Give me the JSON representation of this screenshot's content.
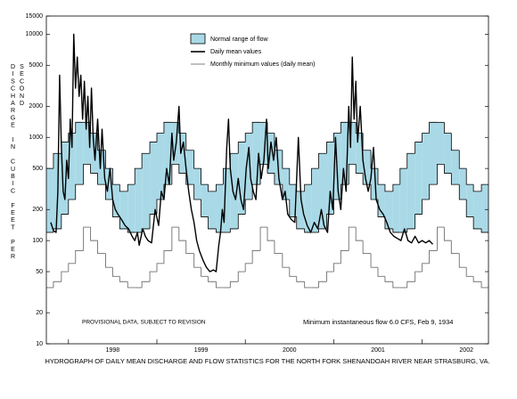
{
  "chart_data": {
    "type": "line",
    "title": "HYDROGRAPH OF DAILY MEAN DISCHARGE AND FLOW STATISTICS FOR THE NORTH FORK SHENANDOAH RIVER NEAR STRASBURG, VA.",
    "ylabel": "DISCHARGE IN CUBIC FEET PER SECOND",
    "annotations": [
      "PROVISIONAL DATA, SUBJECT TO REVISION",
      "Minimum instantaneous flow 6.0 CFS, Feb 9, 1934"
    ],
    "log_scale": true,
    "grid": false,
    "ylim": [
      10,
      15000
    ],
    "yticks": [
      10,
      20,
      50,
      100,
      200,
      500,
      1000,
      2000,
      5000,
      10000,
      15000
    ],
    "xlim": [
      1997.75,
      2002.75
    ],
    "xticks": [
      {
        "value": 1998.5,
        "label": "1998"
      },
      {
        "value": 1999.5,
        "label": "1999"
      },
      {
        "value": 2000.5,
        "label": "2000"
      },
      {
        "value": 2001.5,
        "label": "2001"
      },
      {
        "value": 2002.5,
        "label": "2002"
      }
    ],
    "xminorticks": [
      1998,
      1999,
      2000,
      2001,
      2002
    ],
    "series": [
      {
        "name": "Normal range of flow",
        "kind": "band",
        "color": "#a9d9e6",
        "x": [
          1997.75,
          1997.83,
          1997.92,
          1998.0,
          1998.08,
          1998.17,
          1998.25,
          1998.33,
          1998.42,
          1998.5,
          1998.58,
          1998.67,
          1998.75,
          1998.83,
          1998.92,
          1999.0,
          1999.08,
          1999.17,
          1999.25,
          1999.33,
          1999.42,
          1999.5,
          1999.58,
          1999.67,
          1999.75,
          1999.83,
          1999.92,
          2000.0,
          2000.08,
          2000.17,
          2000.25,
          2000.33,
          2000.42,
          2000.5,
          2000.58,
          2000.67,
          2000.75,
          2000.83,
          2000.92,
          2001.0,
          2001.08,
          2001.17,
          2001.25,
          2001.33,
          2001.42,
          2001.5,
          2001.58,
          2001.67,
          2001.75,
          2001.83,
          2001.92,
          2002.0,
          2002.08,
          2002.17,
          2002.25,
          2002.33,
          2002.42,
          2002.5,
          2002.58,
          2002.67
        ],
        "upper": [
          500,
          700,
          900,
          1100,
          1400,
          1400,
          1100,
          750,
          500,
          350,
          300,
          350,
          500,
          700,
          900,
          1100,
          1400,
          1400,
          1100,
          750,
          500,
          350,
          300,
          350,
          500,
          700,
          900,
          1100,
          1400,
          1400,
          1100,
          750,
          500,
          350,
          300,
          350,
          500,
          700,
          900,
          1100,
          1400,
          1400,
          1100,
          750,
          500,
          350,
          300,
          350,
          500,
          700,
          900,
          1100,
          1400,
          1400,
          1100,
          750,
          500,
          350,
          300,
          350
        ],
        "lower": [
          120,
          130,
          180,
          250,
          350,
          550,
          450,
          350,
          250,
          170,
          130,
          120,
          120,
          130,
          180,
          250,
          350,
          550,
          450,
          350,
          250,
          170,
          130,
          120,
          120,
          130,
          180,
          250,
          350,
          550,
          450,
          350,
          250,
          170,
          130,
          120,
          120,
          130,
          180,
          250,
          350,
          550,
          450,
          350,
          250,
          170,
          130,
          120,
          120,
          130,
          180,
          250,
          350,
          550,
          450,
          350,
          250,
          170,
          130,
          120
        ]
      },
      {
        "name": "Daily mean values",
        "kind": "line",
        "color": "#000000",
        "x": [
          1997.8,
          1997.83,
          1997.86,
          1997.88,
          1997.9,
          1997.92,
          1997.94,
          1997.96,
          1997.98,
          1998.0,
          1998.02,
          1998.04,
          1998.06,
          1998.08,
          1998.1,
          1998.12,
          1998.14,
          1998.16,
          1998.18,
          1998.2,
          1998.22,
          1998.24,
          1998.26,
          1998.28,
          1998.3,
          1998.33,
          1998.36,
          1998.38,
          1998.41,
          1998.44,
          1998.47,
          1998.5,
          1998.53,
          1998.56,
          1998.6,
          1998.64,
          1998.68,
          1998.72,
          1998.75,
          1998.78,
          1998.8,
          1998.84,
          1998.87,
          1998.9,
          1998.94,
          1998.98,
          1999.02,
          1999.05,
          1999.08,
          1999.11,
          1999.14,
          1999.17,
          1999.19,
          1999.22,
          1999.25,
          1999.27,
          1999.3,
          1999.33,
          1999.36,
          1999.39,
          1999.42,
          1999.45,
          1999.48,
          1999.52,
          1999.56,
          1999.6,
          1999.64,
          1999.67,
          1999.7,
          1999.72,
          1999.74,
          1999.76,
          1999.79,
          1999.81,
          1999.83,
          1999.86,
          1999.89,
          1999.92,
          1999.95,
          1999.98,
          2000.01,
          2000.04,
          2000.06,
          2000.09,
          2000.12,
          2000.15,
          2000.18,
          2000.21,
          2000.24,
          2000.26,
          2000.29,
          2000.32,
          2000.35,
          2000.38,
          2000.42,
          2000.45,
          2000.48,
          2000.52,
          2000.56,
          2000.6,
          2000.63,
          2000.66,
          2000.7,
          2000.74,
          2000.78,
          2000.82,
          2000.86,
          2000.89,
          2000.93,
          2000.96,
          2000.99,
          2001.02,
          2001.05,
          2001.08,
          2001.11,
          2001.14,
          2001.17,
          2001.19,
          2001.21,
          2001.23,
          2001.25,
          2001.27,
          2001.3,
          2001.33,
          2001.36,
          2001.39,
          2001.42,
          2001.45,
          2001.48,
          2001.52,
          2001.56,
          2001.6,
          2001.64,
          2001.68,
          2001.72,
          2001.76,
          2001.8,
          2001.84,
          2001.88,
          2001.92,
          2001.96,
          2002.0,
          2002.04,
          2002.08,
          2002.12
        ],
        "values": [
          150,
          125,
          120,
          300,
          4000,
          800,
          300,
          250,
          600,
          400,
          1500,
          800,
          10000,
          3000,
          6000,
          2500,
          4000,
          1500,
          3500,
          1200,
          2500,
          800,
          3000,
          1000,
          600,
          1500,
          500,
          1200,
          400,
          300,
          500,
          250,
          200,
          180,
          160,
          140,
          130,
          110,
          100,
          120,
          90,
          130,
          110,
          100,
          95,
          200,
          140,
          300,
          250,
          500,
          350,
          1100,
          600,
          900,
          2000,
          700,
          900,
          500,
          300,
          200,
          150,
          100,
          80,
          65,
          55,
          50,
          52,
          50,
          90,
          120,
          200,
          150,
          800,
          1500,
          500,
          300,
          250,
          400,
          250,
          200,
          500,
          800,
          400,
          300,
          250,
          700,
          400,
          600,
          1500,
          500,
          900,
          600,
          1000,
          400,
          250,
          300,
          180,
          160,
          150,
          1000,
          250,
          180,
          140,
          120,
          150,
          130,
          200,
          140,
          120,
          300,
          200,
          1000,
          300,
          200,
          500,
          300,
          2000,
          800,
          6000,
          1500,
          3500,
          900,
          2000,
          600,
          400,
          300,
          400,
          800,
          250,
          200,
          180,
          150,
          120,
          110,
          105,
          100,
          130,
          100,
          95,
          110,
          95,
          100,
          95,
          100,
          92
        ]
      },
      {
        "name": "Monthly minimum values (daily mean)",
        "kind": "step",
        "color": "#707070",
        "x": [
          1997.75,
          1997.83,
          1997.92,
          1998.0,
          1998.08,
          1998.17,
          1998.25,
          1998.33,
          1998.42,
          1998.5,
          1998.58,
          1998.67,
          1998.75,
          1998.83,
          1998.92,
          1999.0,
          1999.08,
          1999.17,
          1999.25,
          1999.33,
          1999.42,
          1999.5,
          1999.58,
          1999.67,
          1999.75,
          1999.83,
          1999.92,
          2000.0,
          2000.08,
          2000.17,
          2000.25,
          2000.33,
          2000.42,
          2000.5,
          2000.58,
          2000.67,
          2000.75,
          2000.83,
          2000.92,
          2001.0,
          2001.08,
          2001.17,
          2001.25,
          2001.33,
          2001.42,
          2001.5,
          2001.58,
          2001.67,
          2001.75,
          2001.83,
          2001.92,
          2002.0,
          2002.08,
          2002.17,
          2002.25,
          2002.33,
          2002.42,
          2002.5,
          2002.58,
          2002.67
        ],
        "values": [
          35,
          40,
          50,
          60,
          80,
          135,
          100,
          75,
          55,
          45,
          40,
          35,
          35,
          40,
          50,
          60,
          80,
          135,
          100,
          75,
          55,
          45,
          40,
          35,
          35,
          40,
          50,
          60,
          80,
          135,
          100,
          75,
          55,
          45,
          40,
          35,
          35,
          40,
          50,
          60,
          80,
          135,
          100,
          75,
          55,
          45,
          40,
          35,
          35,
          40,
          50,
          60,
          80,
          135,
          100,
          75,
          55,
          45,
          40,
          35
        ]
      }
    ]
  }
}
